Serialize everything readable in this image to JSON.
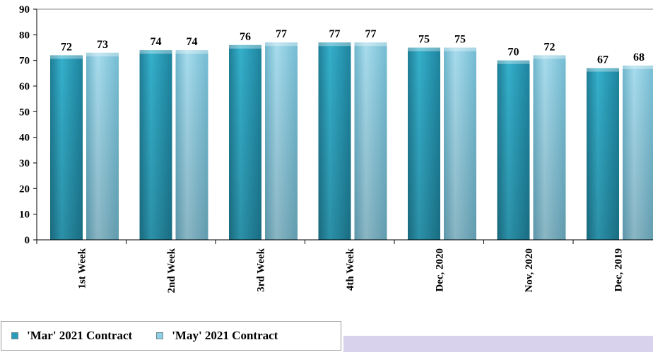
{
  "colors": {
    "mar": "#2a9cb8",
    "may": "#8fcfe4",
    "axis": "#000000",
    "grid": "#cccccc",
    "band": "#d9d2ec"
  },
  "legend": {
    "mar_label": "'Mar' 2021 Contract",
    "may_label": "'May' 2021 Contract"
  },
  "chart_data": {
    "type": "bar",
    "categories": [
      "1st Week",
      "2nd Week",
      "3rd Week",
      "4th Week",
      "Dec, 2020",
      "Nov, 2020",
      "Dec, 2019"
    ],
    "series": [
      {
        "name": "'Mar' 2021 Contract",
        "values": [
          72,
          74,
          76,
          77,
          75,
          70,
          67
        ]
      },
      {
        "name": "'May' 2021 Contract",
        "values": [
          73,
          74,
          77,
          77,
          75,
          72,
          68
        ]
      }
    ],
    "value_labels": {
      "mar": [
        "72",
        "74",
        "76",
        "77",
        "75",
        "70",
        "67"
      ],
      "may": [
        "73",
        "74",
        "77",
        "77",
        "75",
        "72",
        "68"
      ]
    },
    "yticks": [
      "0",
      "10",
      "20",
      "30",
      "40",
      "50",
      "60",
      "70",
      "80",
      "90"
    ],
    "ylim": [
      0,
      90
    ],
    "ytick_step": 10,
    "grid": false,
    "legend_position": "bottom-left"
  }
}
